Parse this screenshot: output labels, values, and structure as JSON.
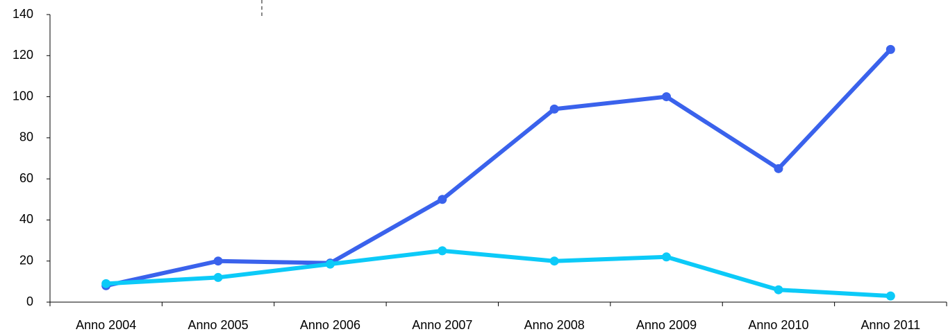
{
  "chart_data": {
    "type": "line",
    "categories": [
      "Anno 2004",
      "Anno 2005",
      "Anno 2006",
      "Anno 2007",
      "Anno 2008",
      "Anno 2009",
      "Anno 2010",
      "Anno 2011"
    ],
    "series": [
      {
        "color": "#3a62ec",
        "values": [
          8,
          20,
          19,
          50,
          94,
          100,
          65,
          123
        ]
      },
      {
        "color": "#0ccaf8",
        "values": [
          9,
          12,
          18.5,
          25,
          20,
          22,
          6,
          3
        ]
      }
    ],
    "ylim": [
      0,
      140
    ],
    "yticks": [
      0,
      20,
      40,
      60,
      80,
      100,
      120,
      140
    ],
    "grid": false
  }
}
